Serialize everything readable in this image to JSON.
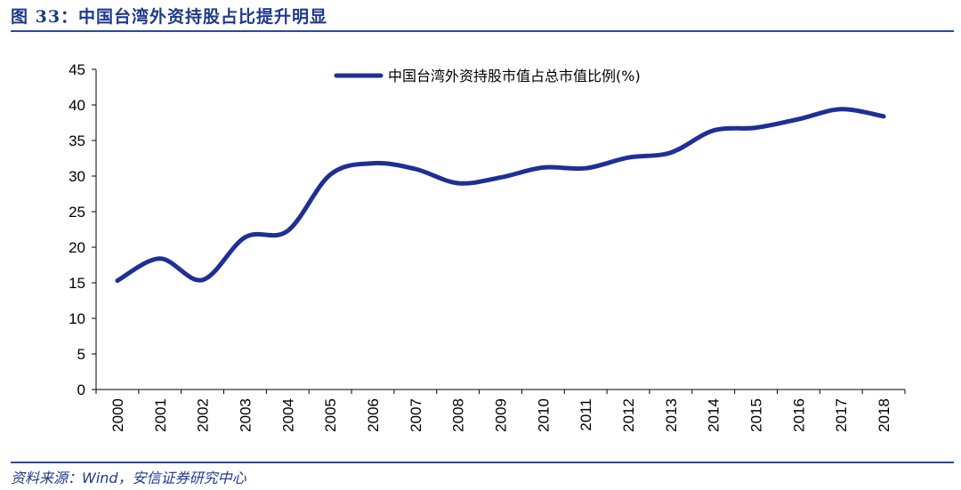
{
  "figure": {
    "title": "图 33：中国台湾外资持股占比提升明显",
    "source": "资料来源：Wind，安信证券研究中心"
  },
  "chart_data": {
    "type": "line",
    "categories": [
      "2000",
      "2001",
      "2002",
      "2003",
      "2004",
      "2005",
      "2006",
      "2007",
      "2008",
      "2009",
      "2010",
      "2011",
      "2012",
      "2013",
      "2014",
      "2015",
      "2016",
      "2017",
      "2018"
    ],
    "series": [
      {
        "name": "中国台湾外资持股市值占总市值比例(%)",
        "color": "#1e2f96",
        "values": [
          15.3,
          18.4,
          15.4,
          21.4,
          22.3,
          30.2,
          31.8,
          31.0,
          29.0,
          29.8,
          31.2,
          31.1,
          32.6,
          33.3,
          36.4,
          36.8,
          38.0,
          39.4,
          38.4
        ]
      }
    ],
    "ylim": [
      0,
      45
    ],
    "yticks": [
      0,
      5,
      10,
      15,
      20,
      25,
      30,
      35,
      40,
      45
    ],
    "xlabel": "",
    "ylabel": "",
    "grid": false,
    "legend_position": "top-center"
  }
}
